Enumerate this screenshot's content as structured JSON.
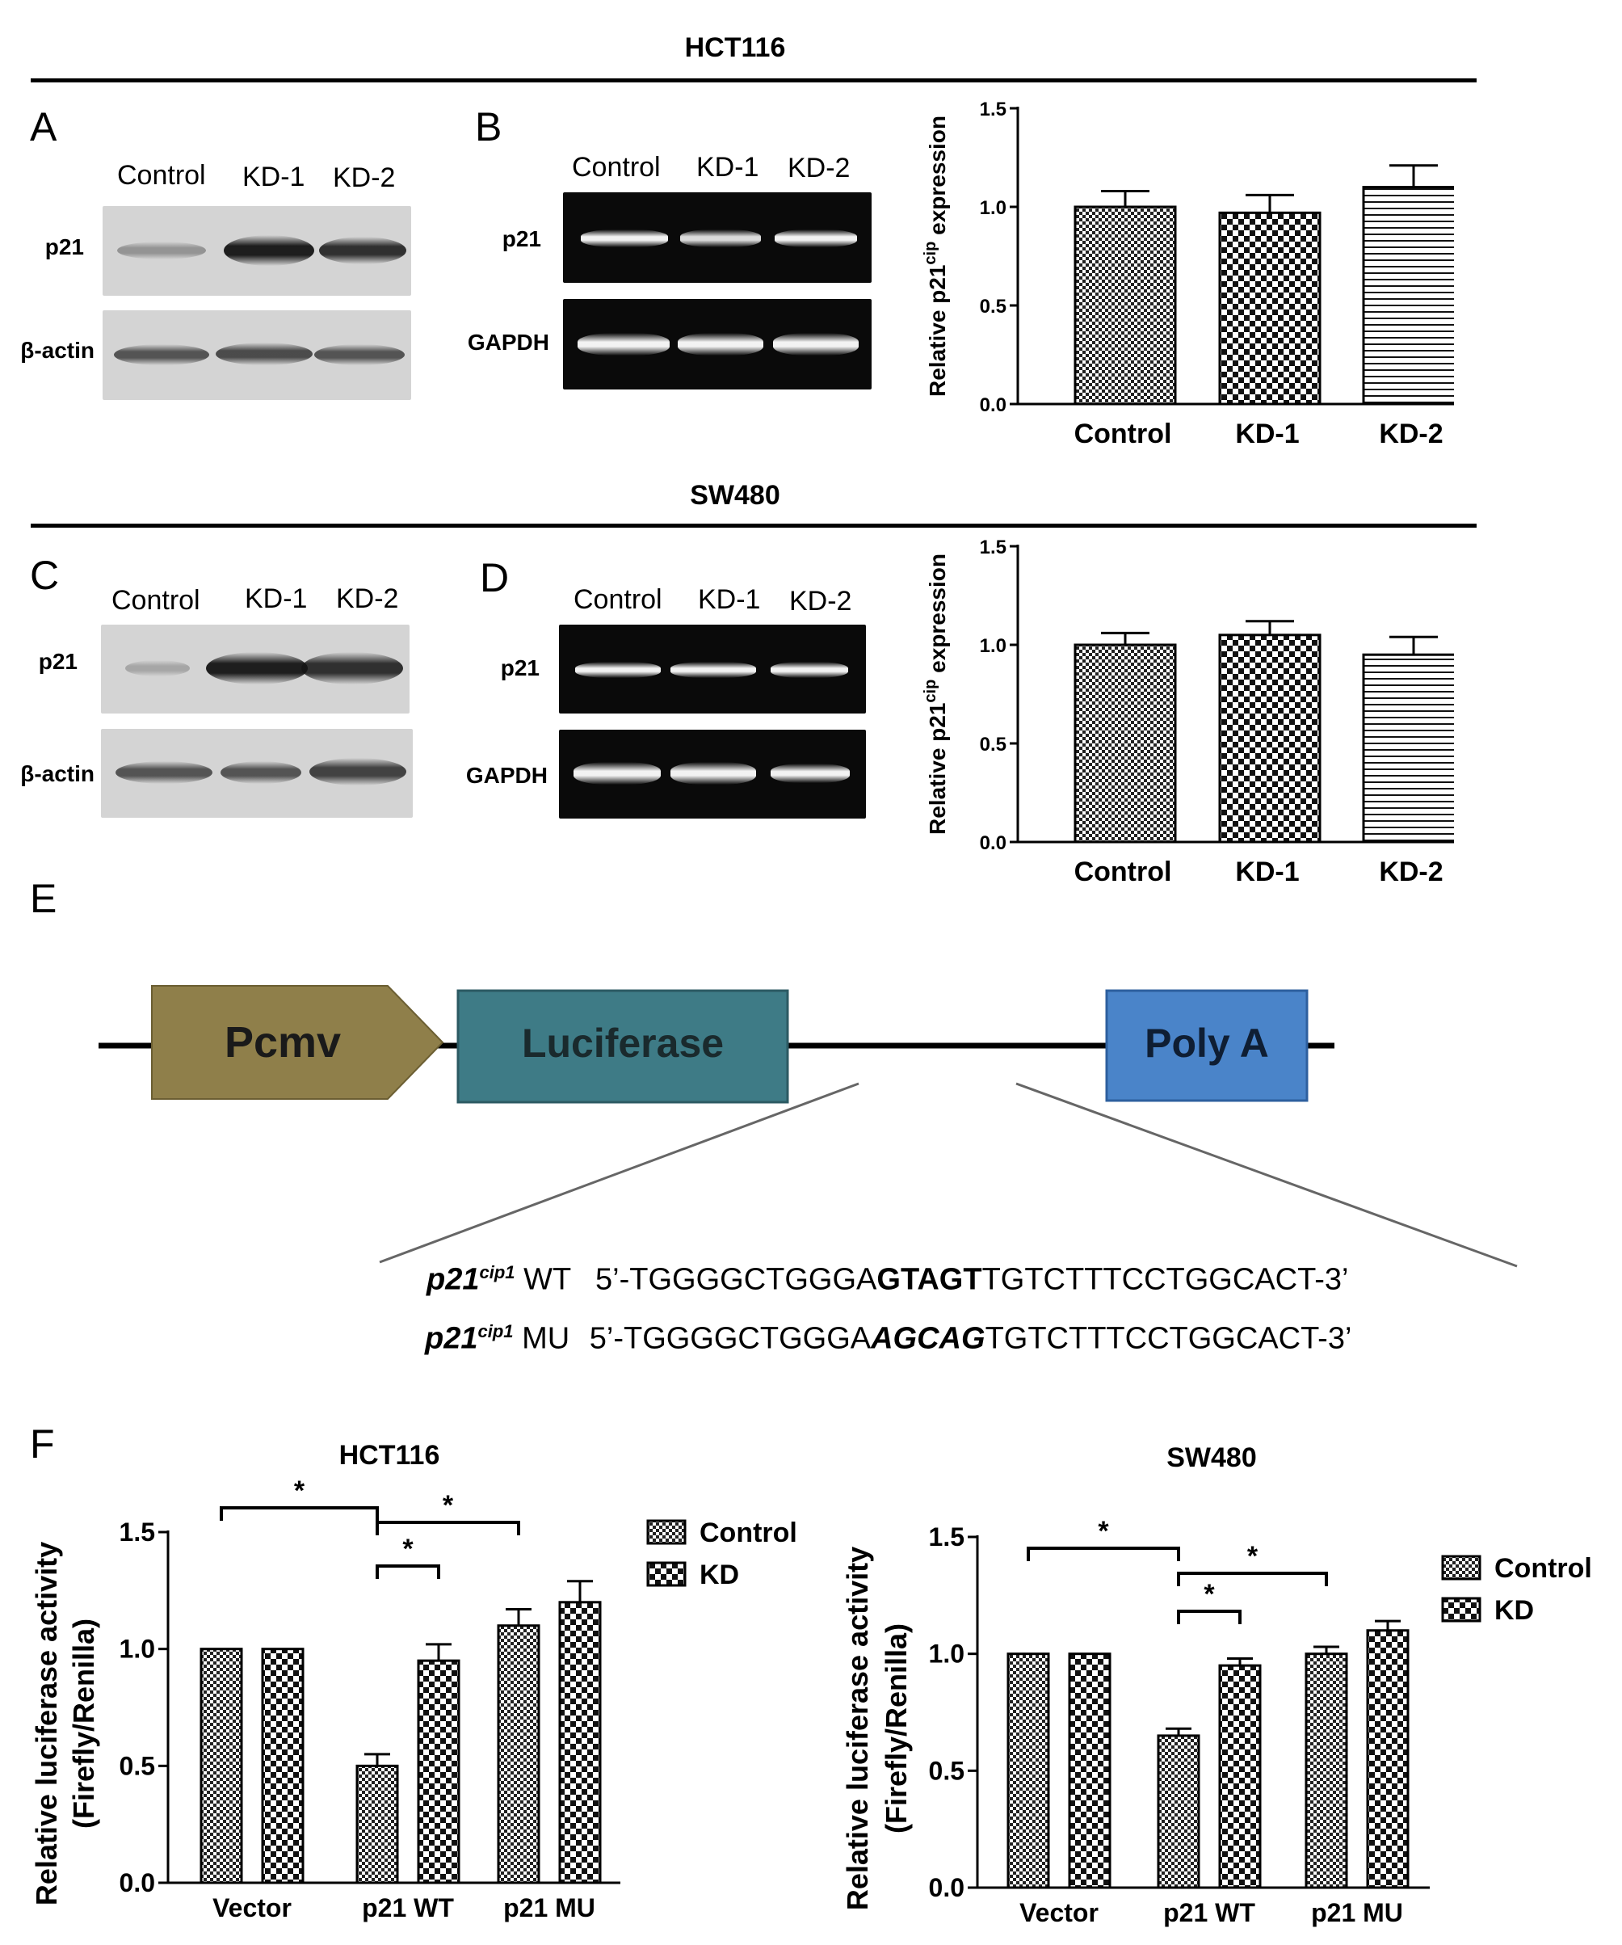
{
  "header_top": "HCT116",
  "header_mid": "SW480",
  "panels": {
    "A": "A",
    "B": "B",
    "C": "C",
    "D": "D",
    "E": "E",
    "F": "F"
  },
  "blot_lanes": [
    "Control",
    "KD-1",
    "KD-2"
  ],
  "blot_rows": {
    "p21": "p21",
    "actin": "β-actin",
    "gapdh": "GAPDH"
  },
  "construct": {
    "pcmv": "Pcmv",
    "luciferase": "Luciferase",
    "polya": "Poly A",
    "colors": {
      "pcmv": "#8f7f4a",
      "luciferase": "#3e7b86",
      "polya": "#4a84c9"
    }
  },
  "sequences": {
    "wt": {
      "gene": "p21",
      "sup": "cip1",
      "tag": "WT",
      "prefix": "5’-TGGGGCTGGGA",
      "site": "GTAGT",
      "suffix": "TGTCTTTCCTGGCACT-3’"
    },
    "mu": {
      "gene": "p21",
      "sup": "cip1",
      "tag": "MU",
      "prefix": "5’-TGGGGCTGGGA",
      "site": "AGCAG",
      "suffix": "TGTCTTTCCTGGCACT-3’"
    }
  },
  "chart_data": [
    {
      "id": "B-right",
      "type": "bar",
      "title": "",
      "ylabel": "Relative p21cip expression",
      "ylabel_main": "Relative p21",
      "ylabel_sup": "cip",
      "ylabel_tail": " expression",
      "categories": [
        "Control",
        "KD-1",
        "KD-2"
      ],
      "values": [
        1.0,
        0.97,
        1.1
      ],
      "errors": [
        0.08,
        0.09,
        0.11
      ],
      "ylim": [
        0,
        1.5
      ],
      "yticks": [
        "0.0",
        "0.5",
        "1.0",
        "1.5"
      ],
      "patterns": [
        "checker-fine",
        "checker-coarse",
        "hlines"
      ]
    },
    {
      "id": "D-right",
      "type": "bar",
      "title": "",
      "ylabel": "Relative p21cip expression",
      "ylabel_main": "Relative p21",
      "ylabel_sup": "cip",
      "ylabel_tail": " expression",
      "categories": [
        "Control",
        "KD-1",
        "KD-2"
      ],
      "values": [
        1.0,
        1.05,
        0.95
      ],
      "errors": [
        0.06,
        0.07,
        0.09
      ],
      "ylim": [
        0,
        1.5
      ],
      "yticks": [
        "0.0",
        "0.5",
        "1.0",
        "1.5"
      ],
      "patterns": [
        "checker-fine",
        "checker-coarse",
        "hlines"
      ]
    },
    {
      "id": "F-left",
      "type": "bar",
      "title": "HCT116",
      "ylabel": "Relative luciferase activity (Firefly/Renilla)",
      "ylabel_line1": "Relative luciferase activity",
      "ylabel_line2": "(Firefly/Renilla)",
      "categories": [
        "Vector",
        "p21 WT",
        "p21 MU"
      ],
      "series": [
        {
          "name": "Control",
          "values": [
            1.0,
            0.5,
            1.1
          ],
          "errors": [
            0,
            0.05,
            0.07
          ]
        },
        {
          "name": "KD",
          "values": [
            1.0,
            0.95,
            1.2
          ],
          "errors": [
            0,
            0.07,
            0.09
          ]
        }
      ],
      "ylim": [
        0,
        1.5
      ],
      "yticks": [
        "0.0",
        "0.5",
        "1.0",
        "1.5"
      ],
      "significance": [
        {
          "from": [
            0,
            0
          ],
          "to": [
            1,
            0
          ],
          "label": "*"
        },
        {
          "from": [
            1,
            0
          ],
          "to": [
            2,
            0
          ],
          "label": "*"
        },
        {
          "from": [
            1,
            0
          ],
          "to": [
            1,
            1
          ],
          "label": "*"
        }
      ]
    },
    {
      "id": "F-right",
      "type": "bar",
      "title": "SW480",
      "ylabel": "Relative luciferase activity (Firefly/Renilla)",
      "ylabel_line1": "Relative luciferase activity",
      "ylabel_line2": "(Firefly/Renilla)",
      "categories": [
        "Vector",
        "p21 WT",
        "p21 MU"
      ],
      "series": [
        {
          "name": "Control",
          "values": [
            1.0,
            0.65,
            1.0
          ],
          "errors": [
            0,
            0.03,
            0.03
          ]
        },
        {
          "name": "KD",
          "values": [
            1.0,
            0.95,
            1.1
          ],
          "errors": [
            0,
            0.03,
            0.04
          ]
        }
      ],
      "ylim": [
        0,
        1.5
      ],
      "yticks": [
        "0.0",
        "0.5",
        "1.0",
        "1.5"
      ],
      "significance": [
        {
          "from": [
            0,
            0
          ],
          "to": [
            1,
            0
          ],
          "label": "*"
        },
        {
          "from": [
            1,
            0
          ],
          "to": [
            2,
            0
          ],
          "label": "*"
        },
        {
          "from": [
            1,
            0
          ],
          "to": [
            1,
            1
          ],
          "label": "*"
        }
      ]
    }
  ]
}
